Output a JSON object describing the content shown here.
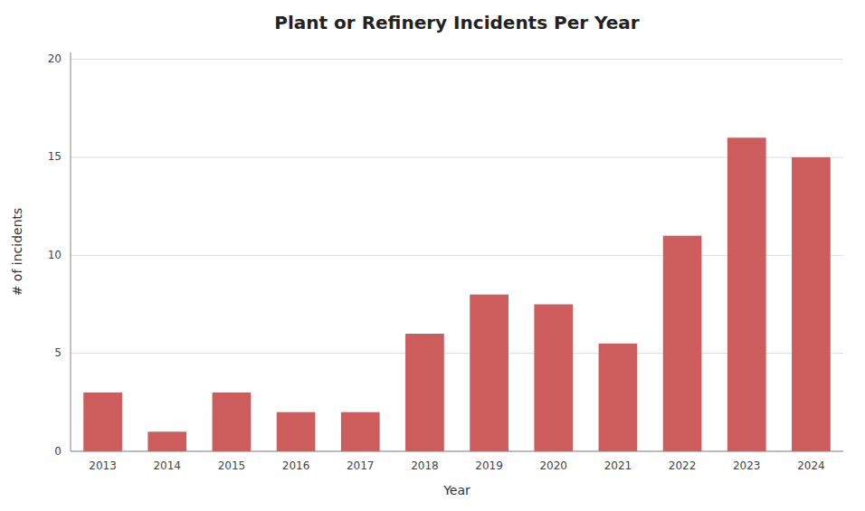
{
  "chart_data": {
    "type": "bar",
    "title": "Plant or Refinery Incidents Per Year",
    "xlabel": "Year",
    "ylabel": "# of incidents",
    "categories": [
      "2013",
      "2014",
      "2015",
      "2016",
      "2017",
      "2018",
      "2019",
      "2020",
      "2021",
      "2022",
      "2023",
      "2024"
    ],
    "values": [
      3,
      1,
      3,
      2,
      2,
      6,
      8,
      7.5,
      5.5,
      11,
      16,
      15
    ],
    "color": "#CD5C5C",
    "ylim": [
      0,
      20.35
    ],
    "yticks": [
      0,
      5,
      10,
      15,
      20
    ],
    "grid": true
  }
}
